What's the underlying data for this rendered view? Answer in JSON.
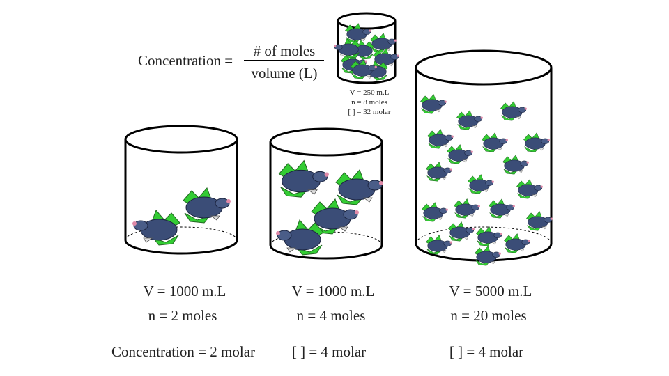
{
  "formula": {
    "left": "Concentration =",
    "numerator": "# of moles",
    "denominator": "volume (L)"
  },
  "small_beaker": {
    "volume": "V = 250 m.L",
    "moles": "n = 8 moles",
    "concentration": "[ ] = 32 molar"
  },
  "beakers": [
    {
      "volume": "V = 1000 m.L",
      "moles": "n = 2 moles",
      "concentration": "Concentration = 2 molar"
    },
    {
      "volume": "V = 1000 m.L",
      "moles": "n = 4 moles",
      "concentration": "[ ] = 4 molar"
    },
    {
      "volume": "V = 5000 m.L",
      "moles": "n = 20 moles",
      "concentration": "[ ] = 4 molar"
    }
  ]
}
